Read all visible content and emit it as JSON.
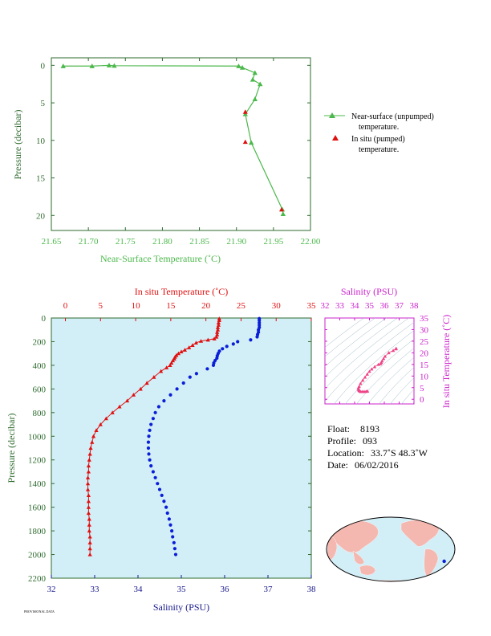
{
  "colors": {
    "green": "#4cb84c",
    "axis_green": "#2e6b2e",
    "red": "#e01010",
    "blue": "#0a1ed8",
    "magenta": "#cc22cc",
    "navy": "#1a1a8c",
    "panel_bg": "#d2eef7"
  },
  "chart_data": [
    {
      "type": "line",
      "xlabel": "Near-Surface Temperature (˚C)",
      "ylabel": "Pressure (decibar)",
      "xlim": [
        21.65,
        22.0
      ],
      "ylim": [
        22,
        -1
      ],
      "x_ticks": [
        "21.65",
        "21.70",
        "21.75",
        "21.80",
        "21.85",
        "21.90",
        "21.95",
        "22.00"
      ],
      "y_ticks": [
        "0",
        "5",
        "10",
        "15",
        "20"
      ],
      "series": [
        {
          "name": "Near-surface (unpumped) temperature.",
          "marker": "triangle",
          "points": [
            [
              21.666,
              0.1
            ],
            [
              21.705,
              0.1
            ],
            [
              21.728,
              0.0
            ],
            [
              21.735,
              0.05
            ],
            [
              21.903,
              0.1
            ],
            [
              21.908,
              0.3
            ],
            [
              21.925,
              1.0
            ],
            [
              21.922,
              1.9
            ],
            [
              21.932,
              2.5
            ],
            [
              21.925,
              4.5
            ],
            [
              21.912,
              6.5
            ],
            [
              21.92,
              10.3
            ],
            [
              21.962,
              19.2
            ],
            [
              21.963,
              19.8
            ]
          ]
        },
        {
          "name": "In situ (pumped) temperature.",
          "marker": "triangle",
          "points": [
            [
              21.912,
              6.2
            ],
            [
              21.912,
              10.2
            ],
            [
              21.961,
              19.2
            ]
          ]
        }
      ],
      "legend": [
        {
          "line1": "Near-surface (unpumped)",
          "line2": "temperature."
        },
        {
          "line1": "In situ (pumped)",
          "line2": "temperature."
        }
      ]
    },
    {
      "type": "line",
      "ylabel": "Pressure (decibar)",
      "ylim": [
        2200,
        0
      ],
      "y_ticks": [
        "0",
        "200",
        "400",
        "600",
        "800",
        "1000",
        "1200",
        "1400",
        "1600",
        "1800",
        "2000",
        "2200"
      ],
      "top_axis": {
        "label": "In situ Temperature (˚C)",
        "range": [
          -2,
          35
        ],
        "ticks": [
          "0",
          "5",
          "10",
          "15",
          "20",
          "25",
          "30",
          "35"
        ]
      },
      "bottom_axis": {
        "label": "Salinity (PSU)",
        "range": [
          32,
          38
        ],
        "ticks": [
          "32",
          "33",
          "34",
          "35",
          "36",
          "37",
          "38"
        ]
      },
      "series": [
        {
          "name": "temperature",
          "marker": "triangle",
          "points": [
            [
              21.9,
              5
            ],
            [
              21.9,
              20
            ],
            [
              21.8,
              40
            ],
            [
              21.8,
              60
            ],
            [
              21.7,
              80
            ],
            [
              21.7,
              100
            ],
            [
              21.6,
              120
            ],
            [
              21.6,
              140
            ],
            [
              21.5,
              160
            ],
            [
              21.2,
              175
            ],
            [
              20.3,
              185
            ],
            [
              19.3,
              195
            ],
            [
              18.6,
              210
            ],
            [
              18.1,
              230
            ],
            [
              17.6,
              250
            ],
            [
              17.0,
              270
            ],
            [
              16.5,
              285
            ],
            [
              16.1,
              300
            ],
            [
              15.8,
              315
            ],
            [
              15.6,
              330
            ],
            [
              15.5,
              345
            ],
            [
              15.3,
              360
            ],
            [
              15.1,
              380
            ],
            [
              14.9,
              400
            ],
            [
              14.4,
              420
            ],
            [
              13.6,
              450
            ],
            [
              12.6,
              500
            ],
            [
              11.6,
              550
            ],
            [
              10.7,
              600
            ],
            [
              9.7,
              650
            ],
            [
              8.8,
              700
            ],
            [
              7.7,
              750
            ],
            [
              6.7,
              800
            ],
            [
              5.8,
              850
            ],
            [
              5.0,
              900
            ],
            [
              4.4,
              950
            ],
            [
              4.0,
              1000
            ],
            [
              3.8,
              1050
            ],
            [
              3.6,
              1100
            ],
            [
              3.5,
              1150
            ],
            [
              3.4,
              1200
            ],
            [
              3.3,
              1250
            ],
            [
              3.3,
              1300
            ],
            [
              3.2,
              1350
            ],
            [
              3.2,
              1400
            ],
            [
              3.2,
              1450
            ],
            [
              3.3,
              1500
            ],
            [
              3.3,
              1550
            ],
            [
              3.3,
              1600
            ],
            [
              3.3,
              1650
            ],
            [
              3.4,
              1700
            ],
            [
              3.4,
              1750
            ],
            [
              3.4,
              1800
            ],
            [
              3.5,
              1850
            ],
            [
              3.5,
              1900
            ],
            [
              3.5,
              1950
            ],
            [
              3.5,
              2000
            ]
          ]
        },
        {
          "name": "salinity",
          "marker": "circle",
          "points": [
            [
              36.8,
              5
            ],
            [
              36.8,
              20
            ],
            [
              36.8,
              40
            ],
            [
              36.8,
              60
            ],
            [
              36.8,
              80
            ],
            [
              36.78,
              100
            ],
            [
              36.78,
              120
            ],
            [
              36.76,
              140
            ],
            [
              36.75,
              160
            ],
            [
              36.6,
              185
            ],
            [
              36.3,
              200
            ],
            [
              36.2,
              220
            ],
            [
              36.05,
              240
            ],
            [
              35.95,
              260
            ],
            [
              35.88,
              280
            ],
            [
              35.85,
              300
            ],
            [
              35.83,
              320
            ],
            [
              35.82,
              340
            ],
            [
              35.78,
              360
            ],
            [
              35.75,
              380
            ],
            [
              35.74,
              400
            ],
            [
              35.6,
              430
            ],
            [
              35.35,
              470
            ],
            [
              35.2,
              500
            ],
            [
              35.05,
              550
            ],
            [
              34.9,
              600
            ],
            [
              34.75,
              650
            ],
            [
              34.6,
              700
            ],
            [
              34.48,
              750
            ],
            [
              34.4,
              800
            ],
            [
              34.35,
              850
            ],
            [
              34.3,
              900
            ],
            [
              34.27,
              950
            ],
            [
              34.25,
              1000
            ],
            [
              34.24,
              1050
            ],
            [
              34.24,
              1100
            ],
            [
              34.25,
              1150
            ],
            [
              34.27,
              1200
            ],
            [
              34.3,
              1250
            ],
            [
              34.35,
              1300
            ],
            [
              34.4,
              1350
            ],
            [
              34.45,
              1400
            ],
            [
              34.5,
              1450
            ],
            [
              34.55,
              1500
            ],
            [
              34.6,
              1550
            ],
            [
              34.65,
              1600
            ],
            [
              34.68,
              1650
            ],
            [
              34.72,
              1700
            ],
            [
              34.75,
              1750
            ],
            [
              34.78,
              1800
            ],
            [
              34.8,
              1850
            ],
            [
              34.83,
              1900
            ],
            [
              34.85,
              1950
            ],
            [
              34.87,
              2000
            ]
          ]
        }
      ]
    },
    {
      "type": "scatter",
      "xlabel": "Salinity (PSU)",
      "ylabel": "In situ Temperature (˚C)",
      "xlim": [
        32,
        38
      ],
      "ylim": [
        -2,
        35
      ],
      "x_ticks": [
        "32",
        "33",
        "34",
        "35",
        "36",
        "37",
        "38"
      ],
      "y_ticks": [
        "0",
        "5",
        "10",
        "15",
        "20",
        "25",
        "30",
        "35"
      ],
      "points": [
        [
          34.87,
          3.5
        ],
        [
          34.8,
          3.4
        ],
        [
          34.7,
          3.3
        ],
        [
          34.6,
          3.3
        ],
        [
          34.5,
          3.3
        ],
        [
          34.4,
          3.3
        ],
        [
          34.35,
          3.5
        ],
        [
          34.3,
          3.8
        ],
        [
          34.27,
          4.2
        ],
        [
          34.25,
          4.8
        ],
        [
          34.3,
          5.5
        ],
        [
          34.4,
          6.8
        ],
        [
          34.55,
          8.2
        ],
        [
          34.7,
          9.5
        ],
        [
          34.85,
          10.8
        ],
        [
          35.0,
          12.0
        ],
        [
          35.15,
          13.0
        ],
        [
          35.35,
          14.0
        ],
        [
          35.6,
          15.0
        ],
        [
          35.74,
          15.3
        ],
        [
          35.8,
          15.8
        ],
        [
          35.85,
          16.5
        ],
        [
          35.95,
          17.5
        ],
        [
          36.05,
          18.5
        ],
        [
          36.3,
          20.0
        ],
        [
          36.6,
          21.0
        ],
        [
          36.78,
          21.7
        ],
        [
          36.8,
          21.9
        ]
      ]
    }
  ],
  "info": {
    "float_label": "Float:",
    "float_value": "8193",
    "profile_label": "Profile:",
    "profile_value": "093",
    "location_label": "Location:",
    "location_value": "33.7˚S  48.3˚W",
    "date_label": "Date:",
    "date_value": "06/02/2016"
  },
  "map": {
    "float_lat": -33.7,
    "float_lon": -48.3
  },
  "footer": {
    "text": "PROVISIONAL DATA"
  }
}
